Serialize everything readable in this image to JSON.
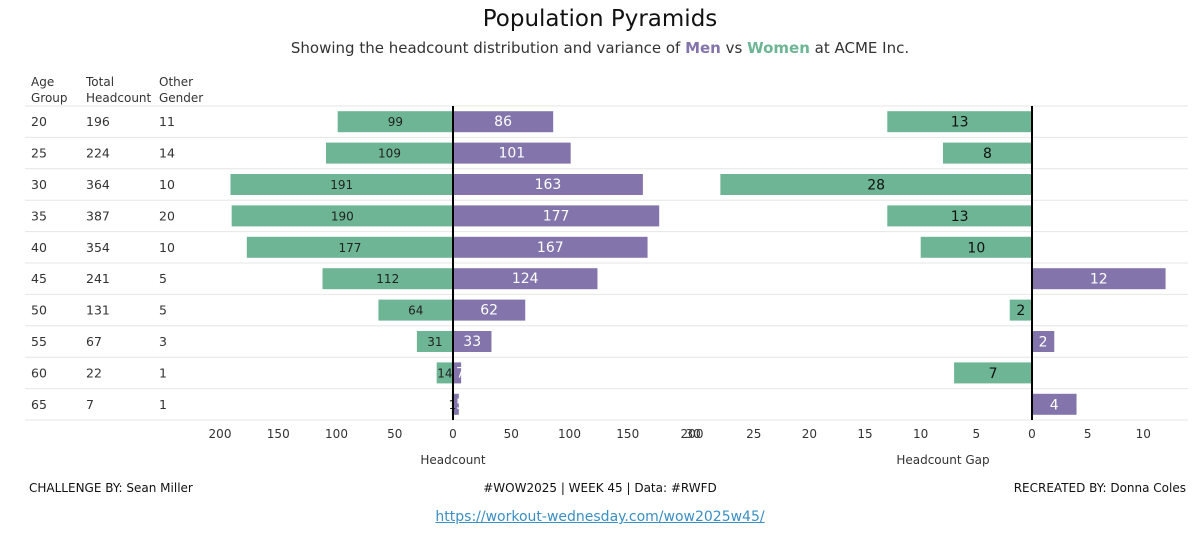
{
  "header": {
    "title": "Population Pyramids",
    "subtitle_pre": "Showing the headcount distribution and variance of ",
    "subtitle_men": "Men",
    "subtitle_mid": " vs ",
    "subtitle_women": "Women",
    "subtitle_post": " at ACME Inc."
  },
  "table": {
    "headers": [
      "Age\nGroup",
      "Total\nHeadcount",
      "Other\nGender"
    ],
    "rows": [
      [
        "20",
        "196",
        "11"
      ],
      [
        "25",
        "224",
        "14"
      ],
      [
        "30",
        "364",
        "10"
      ],
      [
        "35",
        "387",
        "20"
      ],
      [
        "40",
        "354",
        "10"
      ],
      [
        "45",
        "241",
        "5"
      ],
      [
        "50",
        "131",
        "5"
      ],
      [
        "55",
        "67",
        "3"
      ],
      [
        "60",
        "22",
        "1"
      ],
      [
        "65",
        "7",
        "1"
      ]
    ]
  },
  "colors": {
    "women": "#6db594",
    "men": "#8374ab",
    "axis": "#000000",
    "grid": "#e6e6e6"
  },
  "chart_data": [
    {
      "type": "bar",
      "categories": [
        "20",
        "25",
        "30",
        "35",
        "40",
        "45",
        "50",
        "55",
        "60",
        "65"
      ],
      "series": [
        {
          "name": "Women",
          "values": [
            99,
            109,
            191,
            190,
            177,
            112,
            64,
            31,
            14,
            1
          ]
        },
        {
          "name": "Men",
          "values": [
            86,
            101,
            163,
            177,
            167,
            124,
            62,
            33,
            7,
            5
          ]
        }
      ],
      "left_ticks": [
        "200",
        "150",
        "100",
        "50",
        "0"
      ],
      "right_ticks": [
        "0",
        "50",
        "100",
        "150",
        "200"
      ],
      "xlabel": "Headcount",
      "xlim": [
        0,
        200
      ]
    },
    {
      "type": "bar",
      "categories": [
        "20",
        "25",
        "30",
        "35",
        "40",
        "45",
        "50",
        "55",
        "60",
        "65"
      ],
      "values": [
        -13,
        -8,
        -28,
        -13,
        -10,
        12,
        -2,
        2,
        -7,
        4
      ],
      "labels": [
        "13",
        "8",
        "28",
        "13",
        "10",
        "12",
        "2",
        "2",
        "7",
        "4"
      ],
      "ticks": [
        "30",
        "25",
        "20",
        "15",
        "10",
        "5",
        "0",
        "5",
        "10"
      ],
      "tick_values": [
        -30,
        -25,
        -20,
        -15,
        -10,
        -5,
        0,
        5,
        10
      ],
      "xlabel": "Headcount Gap",
      "xlim": [
        -30,
        10
      ]
    }
  ],
  "footer": {
    "left": "CHALLENGE BY: Sean Miller",
    "center": "#WOW2025  |  WEEK 45 | Data: #RWFD",
    "right": "RECREATED BY: Donna Coles",
    "link": "https://workout-wednesday.com/wow2025w45/"
  }
}
